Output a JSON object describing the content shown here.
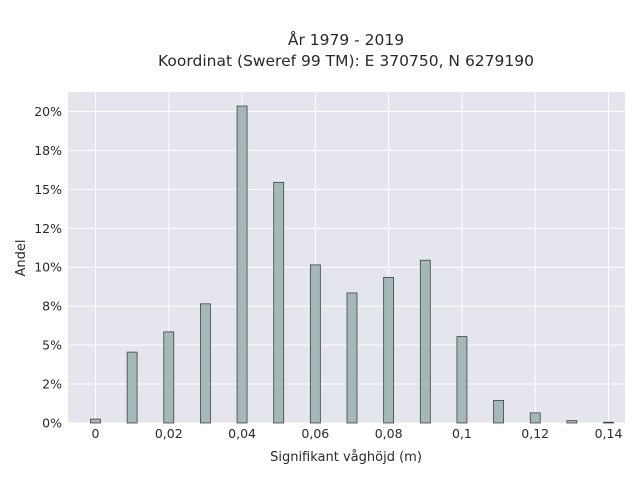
{
  "chart_data": {
    "type": "bar",
    "title_lines": [
      "År 1979 - 2019",
      "Koordinat (Sweref 99 TM): E 370750, N 6279190"
    ],
    "xlabel": "Signifikant våghöjd (m)",
    "ylabel": "Andel",
    "xlim": [
      -0.0075,
      0.1445
    ],
    "ylim": [
      0,
      0.2125
    ],
    "x_ticks": [
      0,
      0.02,
      0.04,
      0.06,
      0.08,
      0.1,
      0.12,
      0.14
    ],
    "x_tick_labels": [
      "0",
      "0,02",
      "0,04",
      "0,06",
      "0,08",
      "0,1",
      "0,12",
      "0,14"
    ],
    "y_ticks": [
      0,
      0.025,
      0.05,
      0.075,
      0.1,
      0.125,
      0.15,
      0.175,
      0.2
    ],
    "y_tick_labels": [
      "0%",
      "2%",
      "5%",
      "8%",
      "10%",
      "12%",
      "15%",
      "18%",
      "20%"
    ],
    "x": [
      0,
      0.01,
      0.02,
      0.03,
      0.04,
      0.05,
      0.06,
      0.07,
      0.08,
      0.09,
      0.1,
      0.11,
      0.12,
      0.13,
      0.14
    ],
    "values": [
      0.0025,
      0.0455,
      0.0585,
      0.0765,
      0.2035,
      0.1545,
      0.1015,
      0.0835,
      0.0935,
      0.1045,
      0.0555,
      0.0145,
      0.0065,
      0.0015,
      0.0005
    ],
    "grid": true,
    "legend": "none",
    "colors": {
      "background": "#e5e5ee",
      "bar_fill": "#a5b8b8",
      "bar_edge": "#3c4444",
      "grid": "#ffffff"
    }
  }
}
